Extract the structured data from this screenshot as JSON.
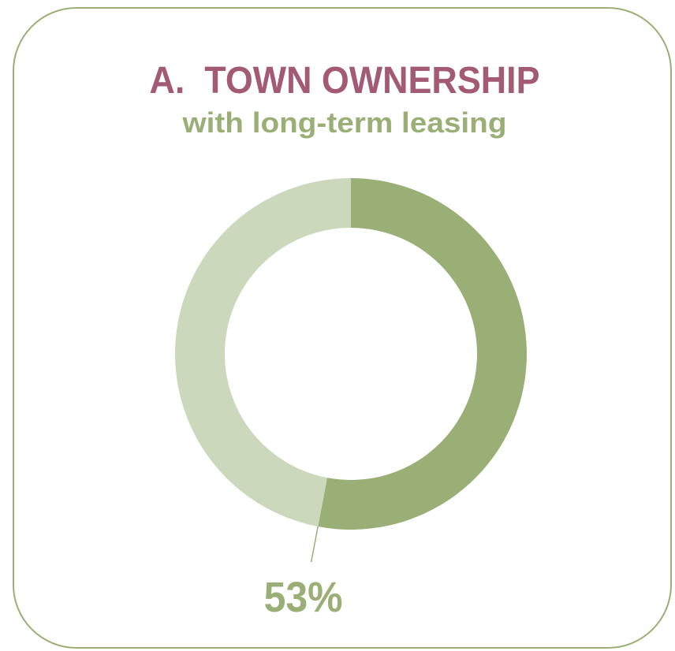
{
  "chart_data": {
    "type": "donut",
    "title": "A.  TOWN OWNERSHIP",
    "subtitle": "with long-term leasing",
    "values": [
      53,
      47
    ],
    "value_labels": [
      "53%",
      null
    ],
    "colors": [
      "#9aaf76",
      "#ccd8bc"
    ],
    "title_color": "#a35a75",
    "subtitle_color": "#9aaf76"
  }
}
